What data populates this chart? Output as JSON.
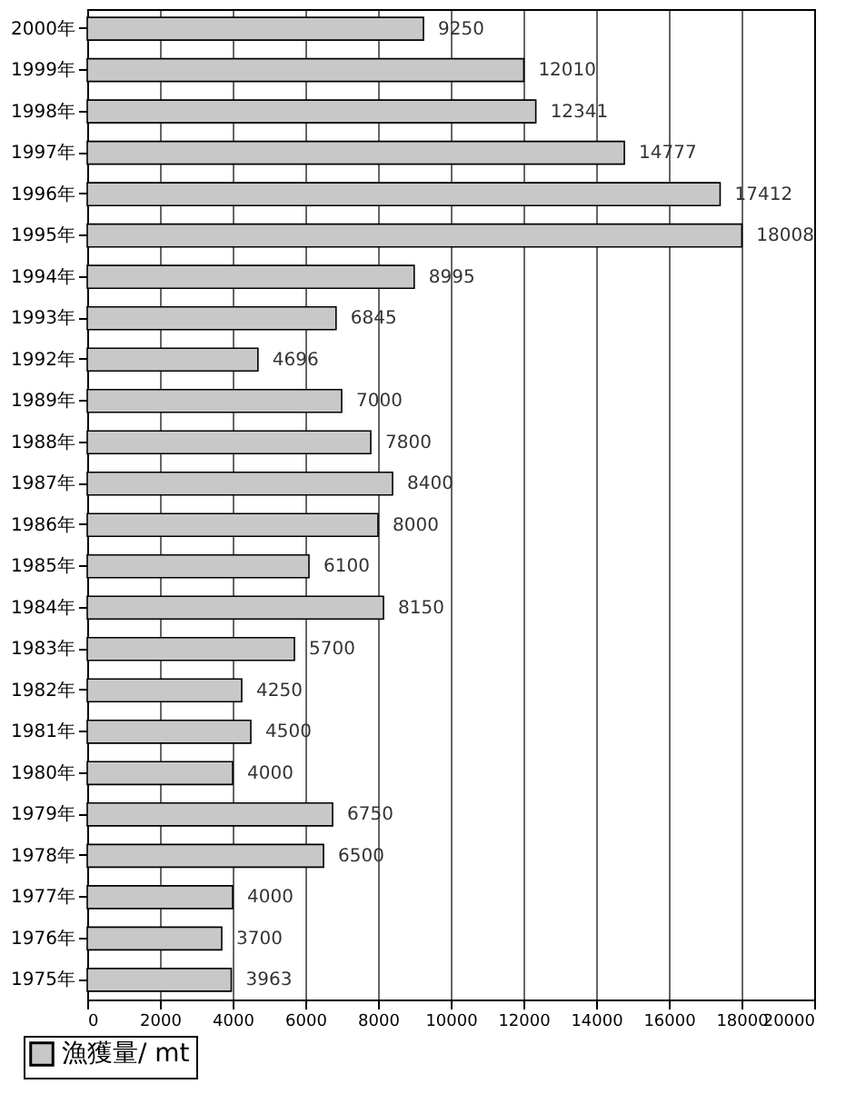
{
  "chart_data": {
    "type": "bar",
    "orientation": "horizontal",
    "categories": [
      "2000年",
      "1999年",
      "1998年",
      "1997年",
      "1996年",
      "1995年",
      "1994年",
      "1993年",
      "1992年",
      "1989年",
      "1988年",
      "1987年",
      "1986年",
      "1985年",
      "1984年",
      "1983年",
      "1982年",
      "1981年",
      "1980年",
      "1979年",
      "1978年",
      "1977年",
      "1976年",
      "1975年"
    ],
    "series": [
      {
        "name": "漁獲量/ mt",
        "color": "#c8c8c8",
        "values": [
          9250,
          12010,
          12341,
          14777,
          17412,
          18008,
          8995,
          6845,
          4696,
          7000,
          7800,
          8400,
          8000,
          6100,
          8150,
          5700,
          4250,
          4500,
          4000,
          6750,
          6500,
          4000,
          3700,
          3963
        ]
      }
    ],
    "xlim": [
      0,
      20000
    ],
    "xlabel": null,
    "xticks": [
      0,
      2000,
      4000,
      6000,
      8000,
      10000,
      12000,
      14000,
      16000,
      18000,
      20000
    ],
    "grid": "x",
    "legend": "bottom left",
    "data_labels": true
  }
}
